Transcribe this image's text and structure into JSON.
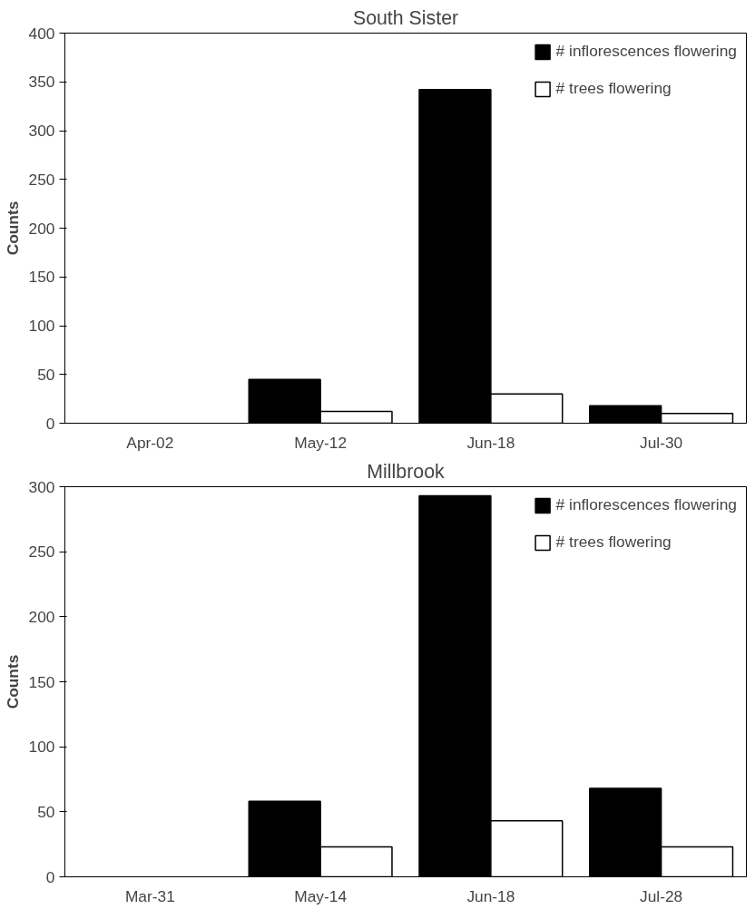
{
  "chart_data": [
    {
      "type": "bar",
      "title": "South Sister",
      "ylabel": "Counts",
      "categories": [
        "Apr-02",
        "May-12",
        "Jun-18",
        "Jul-30"
      ],
      "series": [
        {
          "name": "# inflorescences flowering",
          "color": "#000000",
          "values": [
            null,
            45,
            342,
            18
          ]
        },
        {
          "name": "# trees flowering",
          "color": "#ffffff",
          "values": [
            null,
            12,
            30,
            10
          ]
        }
      ],
      "ylim": [
        0,
        400
      ],
      "yticks": [
        0,
        50,
        100,
        150,
        200,
        250,
        300,
        350,
        400
      ],
      "grid": false,
      "legend": "top right"
    },
    {
      "type": "bar",
      "title": "Millbrook",
      "ylabel": "Counts",
      "categories": [
        "Mar-31",
        "May-14",
        "Jun-18",
        "Jul-28"
      ],
      "series": [
        {
          "name": "# inflorescences flowering",
          "color": "#000000",
          "values": [
            null,
            58,
            293,
            68
          ]
        },
        {
          "name": "# trees flowering",
          "color": "#ffffff",
          "values": [
            null,
            23,
            43,
            23
          ]
        }
      ],
      "ylim": [
        0,
        300
      ],
      "yticks": [
        0,
        50,
        100,
        150,
        200,
        250,
        300
      ],
      "grid": false,
      "legend": "top right"
    }
  ]
}
